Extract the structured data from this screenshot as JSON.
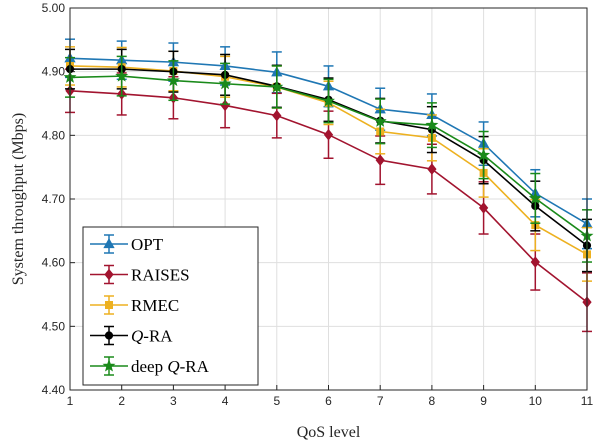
{
  "chart_data": {
    "type": "line",
    "title": "",
    "xlabel": "QoS level",
    "ylabel": "System throughput (Mbps)",
    "xlim": [
      1,
      11
    ],
    "ylim": [
      4.4,
      5.0
    ],
    "x_ticks": [
      "1",
      "2",
      "3",
      "4",
      "5",
      "6",
      "7",
      "8",
      "9",
      "10",
      "11"
    ],
    "y_ticks": [
      {
        "value": 4.4,
        "label": "4.40"
      },
      {
        "value": 4.5,
        "label": "4.50"
      },
      {
        "value": 4.6,
        "label": "4.60"
      },
      {
        "value": 4.7,
        "label": "4.70"
      },
      {
        "value": 4.8,
        "label": "4.80"
      },
      {
        "value": 4.9,
        "label": "4.90"
      },
      {
        "value": 5.0,
        "label": "5.00"
      }
    ],
    "grid": true,
    "legend_position": "bottom-left",
    "x": [
      1,
      2,
      3,
      4,
      5,
      6,
      7,
      8,
      9,
      10,
      11
    ],
    "series": [
      {
        "name": "OPT",
        "legend": [
          "OPT"
        ],
        "color": "#1f77b4",
        "marker": "triangle",
        "values": [
          4.921,
          4.918,
          4.915,
          4.909,
          4.899,
          4.877,
          4.841,
          4.832,
          4.787,
          4.709,
          4.661
        ],
        "errors": [
          0.03,
          0.03,
          0.03,
          0.03,
          0.032,
          0.032,
          0.033,
          0.033,
          0.034,
          0.037,
          0.039
        ]
      },
      {
        "name": "RAISES",
        "legend": [
          "RAISES"
        ],
        "color": "#a2142f",
        "marker": "diamond",
        "values": [
          4.87,
          4.865,
          4.859,
          4.847,
          4.831,
          4.801,
          4.761,
          4.747,
          4.686,
          4.601,
          4.538
        ],
        "errors": [
          0.034,
          0.033,
          0.033,
          0.035,
          0.035,
          0.037,
          0.038,
          0.039,
          0.041,
          0.044,
          0.046
        ]
      },
      {
        "name": "RMEC",
        "legend": [
          "RMEC"
        ],
        "color": "#edb120",
        "marker": "square",
        "values": [
          4.909,
          4.907,
          4.901,
          4.892,
          4.876,
          4.851,
          4.806,
          4.796,
          4.741,
          4.659,
          4.613
        ],
        "errors": [
          0.03,
          0.031,
          0.031,
          0.032,
          0.033,
          0.034,
          0.035,
          0.036,
          0.038,
          0.04,
          0.042
        ]
      },
      {
        "name": "Q-RA",
        "legend": [
          "Q",
          "-RA"
        ],
        "color": "#000000",
        "marker": "circle",
        "values": [
          4.904,
          4.904,
          4.9,
          4.895,
          4.877,
          4.856,
          4.823,
          4.809,
          4.761,
          4.689,
          4.627
        ],
        "errors": [
          0.031,
          0.031,
          0.032,
          0.032,
          0.033,
          0.034,
          0.035,
          0.036,
          0.037,
          0.039,
          0.041
        ]
      },
      {
        "name": "deep Q-RA",
        "legend": [
          "deep ",
          "Q",
          "-RA"
        ],
        "color": "#1a8a1a",
        "marker": "star",
        "values": [
          4.891,
          4.893,
          4.886,
          4.881,
          4.876,
          4.854,
          4.822,
          4.816,
          4.769,
          4.701,
          4.642
        ],
        "errors": [
          0.031,
          0.031,
          0.031,
          0.032,
          0.033,
          0.034,
          0.035,
          0.035,
          0.037,
          0.039,
          0.041
        ]
      }
    ]
  }
}
